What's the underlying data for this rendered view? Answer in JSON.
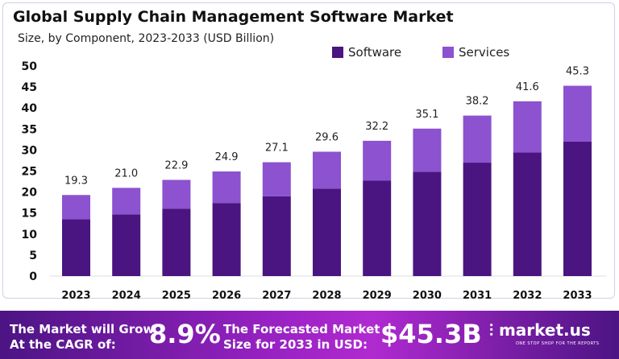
{
  "chart_data": {
    "type": "bar",
    "stacked": true,
    "title": "Global Supply Chain Management Software Market",
    "subtitle": "Size, by Component, 2023-2033 (USD Billion)",
    "categories": [
      "2023",
      "2024",
      "2025",
      "2026",
      "2027",
      "2028",
      "2029",
      "2030",
      "2031",
      "2032",
      "2033"
    ],
    "series": [
      {
        "name": "Software",
        "color": "#4a1580",
        "values": [
          13.5,
          14.7,
          16.0,
          17.4,
          19.0,
          20.8,
          22.7,
          24.8,
          27.0,
          29.4,
          32.0
        ]
      },
      {
        "name": "Services",
        "color": "#8c52cf",
        "values": [
          5.8,
          6.3,
          6.9,
          7.5,
          8.1,
          8.8,
          9.5,
          10.3,
          11.2,
          12.2,
          13.3
        ]
      }
    ],
    "totals": [
      "19.3",
      "21.0",
      "22.9",
      "24.9",
      "27.1",
      "29.6",
      "32.2",
      "35.1",
      "38.2",
      "41.6",
      "45.3"
    ],
    "yticks": [
      0,
      5,
      10,
      15,
      20,
      25,
      30,
      35,
      40,
      45,
      50
    ],
    "ylim": [
      0,
      50
    ],
    "grid": false,
    "legend_placement": "top-right"
  },
  "banner": {
    "cagr_text_1": "The Market will Grow",
    "cagr_text_2": "At the CAGR of:",
    "cagr_value": "8.9%",
    "forecast_text_1": "The Forecasted Market",
    "forecast_text_2": "Size for 2033 in USD:",
    "forecast_value": "$45.3B",
    "brand": "market.us",
    "brand_tagline": "ONE STOP SHOP FOR THE REPORTS"
  }
}
